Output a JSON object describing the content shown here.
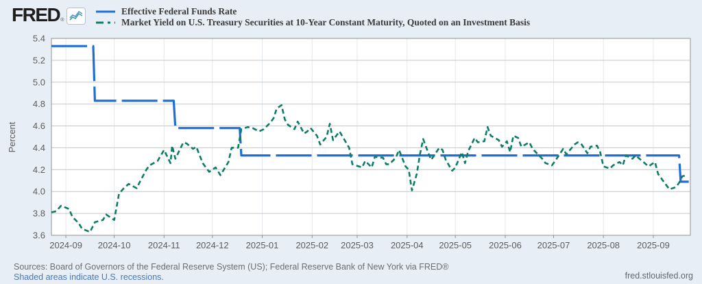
{
  "header": {
    "logo_text": "FRED",
    "logo_registered": "®",
    "legend": [
      {
        "label": "Effective Federal Funds Rate"
      },
      {
        "label": "Market Yield on U.S. Treasury Securities at 10-Year Constant Maturity, Quoted on an Investment Basis"
      }
    ]
  },
  "chart_data": {
    "type": "line",
    "title": "",
    "xlabel": "",
    "ylabel": "Percent",
    "ylim": [
      3.6,
      5.4
    ],
    "yticks": [
      "5.4",
      "5.2",
      "5.0",
      "4.8",
      "4.6",
      "4.4",
      "4.2",
      "4.0",
      "3.8",
      "3.6"
    ],
    "xlim": [
      "2024-08-23",
      "2025-09-24"
    ],
    "xticks": [
      {
        "label": "2024-09",
        "date": "2024-09-01"
      },
      {
        "label": "2024-10",
        "date": "2024-10-01"
      },
      {
        "label": "2024-11",
        "date": "2024-11-01"
      },
      {
        "label": "2024-12",
        "date": "2024-12-01"
      },
      {
        "label": "2025-01",
        "date": "2025-01-01"
      },
      {
        "label": "2025-02",
        "date": "2025-02-01"
      },
      {
        "label": "2025-03",
        "date": "2025-03-01"
      },
      {
        "label": "2025-04",
        "date": "2025-04-01"
      },
      {
        "label": "2025-05",
        "date": "2025-05-01"
      },
      {
        "label": "2025-06",
        "date": "2025-06-01"
      },
      {
        "label": "2025-07",
        "date": "2025-07-01"
      },
      {
        "label": "2025-08",
        "date": "2025-08-01"
      },
      {
        "label": "2025-09",
        "date": "2025-09-01"
      }
    ],
    "grid": true,
    "legend_position": "top-left",
    "series": [
      {
        "name": "Effective Federal Funds Rate",
        "color": "#1b6fd6",
        "dash": "52 8",
        "width": 3.2,
        "points": [
          [
            "2024-08-23",
            5.33
          ],
          [
            "2024-09-18",
            5.33
          ],
          [
            "2024-09-19",
            4.83
          ],
          [
            "2024-11-07",
            4.83
          ],
          [
            "2024-11-08",
            4.58
          ],
          [
            "2024-12-18",
            4.58
          ],
          [
            "2024-12-19",
            4.33
          ],
          [
            "2025-09-17",
            4.33
          ],
          [
            "2025-09-18",
            4.09
          ],
          [
            "2025-09-23",
            4.09
          ]
        ]
      },
      {
        "name": "Market Yield on U.S. Treasury Securities at 10-Year Constant Maturity, Quoted on an Investment Basis",
        "color": "#0d7c66",
        "dash": "7 4.5",
        "width": 2.6,
        "points": [
          [
            "2024-08-23",
            3.81
          ],
          [
            "2024-08-26",
            3.82
          ],
          [
            "2024-08-29",
            3.87
          ],
          [
            "2024-09-03",
            3.84
          ],
          [
            "2024-09-05",
            3.77
          ],
          [
            "2024-09-09",
            3.71
          ],
          [
            "2024-09-11",
            3.66
          ],
          [
            "2024-09-16",
            3.63
          ],
          [
            "2024-09-19",
            3.72
          ],
          [
            "2024-09-24",
            3.74
          ],
          [
            "2024-09-26",
            3.79
          ],
          [
            "2024-09-30",
            3.75
          ],
          [
            "2024-10-01",
            3.74
          ],
          [
            "2024-10-04",
            3.98
          ],
          [
            "2024-10-07",
            4.03
          ],
          [
            "2024-10-10",
            4.07
          ],
          [
            "2024-10-15",
            4.03
          ],
          [
            "2024-10-17",
            4.09
          ],
          [
            "2024-10-21",
            4.2
          ],
          [
            "2024-10-23",
            4.24
          ],
          [
            "2024-10-28",
            4.28
          ],
          [
            "2024-11-01",
            4.38
          ],
          [
            "2024-11-05",
            4.26
          ],
          [
            "2024-11-06",
            4.42
          ],
          [
            "2024-11-08",
            4.3
          ],
          [
            "2024-11-13",
            4.45
          ],
          [
            "2024-11-15",
            4.44
          ],
          [
            "2024-11-19",
            4.39
          ],
          [
            "2024-11-21",
            4.41
          ],
          [
            "2024-11-25",
            4.26
          ],
          [
            "2024-11-29",
            4.18
          ],
          [
            "2024-12-03",
            4.22
          ],
          [
            "2024-12-06",
            4.15
          ],
          [
            "2024-12-11",
            4.27
          ],
          [
            "2024-12-13",
            4.4
          ],
          [
            "2024-12-17",
            4.4
          ],
          [
            "2024-12-19",
            4.57
          ],
          [
            "2024-12-23",
            4.59
          ],
          [
            "2024-12-26",
            4.58
          ],
          [
            "2024-12-30",
            4.55
          ],
          [
            "2025-01-02",
            4.57
          ],
          [
            "2025-01-06",
            4.63
          ],
          [
            "2025-01-08",
            4.67
          ],
          [
            "2025-01-10",
            4.76
          ],
          [
            "2025-01-13",
            4.79
          ],
          [
            "2025-01-15",
            4.66
          ],
          [
            "2025-01-17",
            4.61
          ],
          [
            "2025-01-21",
            4.57
          ],
          [
            "2025-01-23",
            4.64
          ],
          [
            "2025-01-27",
            4.53
          ],
          [
            "2025-01-29",
            4.55
          ],
          [
            "2025-01-31",
            4.58
          ],
          [
            "2025-02-04",
            4.51
          ],
          [
            "2025-02-06",
            4.43
          ],
          [
            "2025-02-10",
            4.5
          ],
          [
            "2025-02-12",
            4.62
          ],
          [
            "2025-02-14",
            4.47
          ],
          [
            "2025-02-18",
            4.55
          ],
          [
            "2025-02-20",
            4.5
          ],
          [
            "2025-02-24",
            4.4
          ],
          [
            "2025-02-26",
            4.25
          ],
          [
            "2025-02-28",
            4.24
          ],
          [
            "2025-03-04",
            4.22
          ],
          [
            "2025-03-06",
            4.28
          ],
          [
            "2025-03-10",
            4.22
          ],
          [
            "2025-03-12",
            4.32
          ],
          [
            "2025-03-14",
            4.31
          ],
          [
            "2025-03-17",
            4.31
          ],
          [
            "2025-03-19",
            4.25
          ],
          [
            "2025-03-21",
            4.25
          ],
          [
            "2025-03-25",
            4.31
          ],
          [
            "2025-03-27",
            4.38
          ],
          [
            "2025-03-31",
            4.23
          ],
          [
            "2025-04-02",
            4.2
          ],
          [
            "2025-04-04",
            4.01
          ],
          [
            "2025-04-07",
            4.16
          ],
          [
            "2025-04-09",
            4.34
          ],
          [
            "2025-04-11",
            4.48
          ],
          [
            "2025-04-14",
            4.36
          ],
          [
            "2025-04-16",
            4.29
          ],
          [
            "2025-04-21",
            4.4
          ],
          [
            "2025-04-23",
            4.38
          ],
          [
            "2025-04-25",
            4.29
          ],
          [
            "2025-04-29",
            4.19
          ],
          [
            "2025-05-01",
            4.22
          ],
          [
            "2025-05-05",
            4.36
          ],
          [
            "2025-05-07",
            4.26
          ],
          [
            "2025-05-09",
            4.37
          ],
          [
            "2025-05-13",
            4.49
          ],
          [
            "2025-05-15",
            4.45
          ],
          [
            "2025-05-19",
            4.46
          ],
          [
            "2025-05-21",
            4.59
          ],
          [
            "2025-05-23",
            4.51
          ],
          [
            "2025-05-28",
            4.47
          ],
          [
            "2025-05-30",
            4.41
          ],
          [
            "2025-06-02",
            4.46
          ],
          [
            "2025-06-04",
            4.36
          ],
          [
            "2025-06-06",
            4.51
          ],
          [
            "2025-06-09",
            4.49
          ],
          [
            "2025-06-11",
            4.41
          ],
          [
            "2025-06-16",
            4.45
          ],
          [
            "2025-06-18",
            4.39
          ],
          [
            "2025-06-24",
            4.3
          ],
          [
            "2025-06-26",
            4.26
          ],
          [
            "2025-06-30",
            4.24
          ],
          [
            "2025-07-02",
            4.28
          ],
          [
            "2025-07-07",
            4.39
          ],
          [
            "2025-07-09",
            4.34
          ],
          [
            "2025-07-14",
            4.43
          ],
          [
            "2025-07-16",
            4.45
          ],
          [
            "2025-07-18",
            4.44
          ],
          [
            "2025-07-22",
            4.35
          ],
          [
            "2025-07-24",
            4.41
          ],
          [
            "2025-07-28",
            4.42
          ],
          [
            "2025-07-30",
            4.36
          ],
          [
            "2025-08-01",
            4.23
          ],
          [
            "2025-08-05",
            4.21
          ],
          [
            "2025-08-07",
            4.24
          ],
          [
            "2025-08-11",
            4.27
          ],
          [
            "2025-08-13",
            4.24
          ],
          [
            "2025-08-15",
            4.33
          ],
          [
            "2025-08-19",
            4.3
          ],
          [
            "2025-08-21",
            4.33
          ],
          [
            "2025-08-25",
            4.28
          ],
          [
            "2025-08-29",
            4.23
          ],
          [
            "2025-09-02",
            4.27
          ],
          [
            "2025-09-04",
            4.16
          ],
          [
            "2025-09-08",
            4.08
          ],
          [
            "2025-09-11",
            4.02
          ],
          [
            "2025-09-15",
            4.04
          ],
          [
            "2025-09-17",
            4.08
          ],
          [
            "2025-09-19",
            4.14
          ],
          [
            "2025-09-22",
            4.15
          ]
        ]
      }
    ],
    "style": {
      "plot_bg": "#ffffff",
      "page_bg": "#e7eef5",
      "grid_color": "#c6c6c6",
      "month_grid_color": "#e3e8ec",
      "frame_color": "#8c9196"
    }
  },
  "footer": {
    "sources": "Sources: Board of Governors of the Federal Reserve System (US); Federal Reserve Bank of New York via FRED®",
    "recession_note": "Shaded areas indicate U.S. recessions.",
    "site": "fred.stlouisfed.org"
  }
}
